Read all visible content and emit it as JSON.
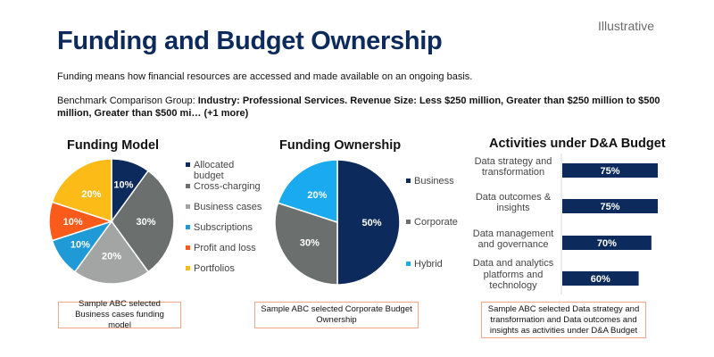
{
  "header": {
    "tag": "Illustrative",
    "title": "Funding and Budget Ownership",
    "intro": "Funding means how financial resources are accessed and made available on an ongoing basis.",
    "benchmark_prefix": "Benchmark Comparison Group: ",
    "benchmark_bold": "Industry: Professional Services. Revenue Size: Less $250 million, Greater than $250 million to $500 million, Greater than $500 mi… (+1 more)"
  },
  "chart_data": [
    {
      "type": "pie",
      "title": "Funding Model",
      "categories": [
        "Allocated budget",
        "Cross-charging",
        "Business cases",
        "Subscriptions",
        "Profit and loss",
        "Portfolios"
      ],
      "legend_lines": [
        [
          "Allocated",
          "budget"
        ],
        [
          "Cross-charging"
        ],
        [
          "Business cases"
        ],
        [
          "Subscriptions"
        ],
        [
          "Profit and loss"
        ],
        [
          "Portfolios"
        ]
      ],
      "values": [
        10,
        30,
        20,
        10,
        10,
        20
      ],
      "labels": [
        "10%",
        "30%",
        "20%",
        "10%",
        "10%",
        "20%"
      ],
      "colors": [
        "#0d2a5c",
        "#6b706f",
        "#a3a5a4",
        "#1f9ad6",
        "#fa5b1a",
        "#fdbb18"
      ],
      "legend_position": "right"
    },
    {
      "type": "pie",
      "title": "Funding Ownership",
      "categories": [
        "Business",
        "Corporate",
        "Hybrid"
      ],
      "values": [
        50,
        30,
        20
      ],
      "labels": [
        "50%",
        "30%",
        "20%"
      ],
      "colors": [
        "#0d2a5c",
        "#6b706f",
        "#1aaaf0"
      ],
      "legend_position": "right"
    },
    {
      "type": "bar",
      "orientation": "horizontal",
      "title": "Activities under D&A Budget",
      "categories": [
        "Data strategy and transformation",
        "Data outcomes & insights",
        "Data management and governance",
        "Data and analytics platforms and technology"
      ],
      "category_lines": [
        [
          "Data strategy and",
          "transformation"
        ],
        [
          "Data outcomes &",
          "insights"
        ],
        [
          "Data management",
          "and governance"
        ],
        [
          "Data and analytics",
          "platforms and",
          "technology"
        ]
      ],
      "values": [
        75,
        75,
        70,
        60
      ],
      "labels": [
        "75%",
        "75%",
        "70%",
        "60%"
      ],
      "color": "#0d2a5c",
      "xlim": [
        0,
        75
      ]
    }
  ],
  "notes": [
    "Sample ABC selected Business cases funding model",
    "Sample ABC selected Corporate Budget Ownership",
    "Sample ABC selected Data strategy and transformation and Data outcomes and insights as activities under D&A Budget"
  ]
}
